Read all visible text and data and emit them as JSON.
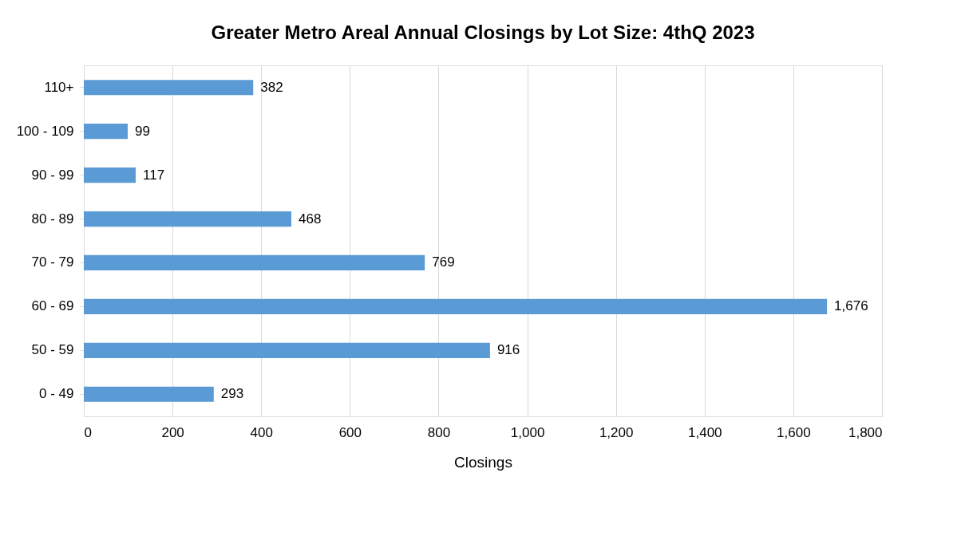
{
  "chart_data": {
    "type": "bar",
    "orientation": "horizontal",
    "title": "Greater Metro Areal Annual Closings by Lot Size: 4thQ 2023",
    "xlabel": "Closings",
    "categories": [
      "110+",
      "100 - 109",
      "90 - 99",
      "80 - 89",
      "70 - 79",
      "60 - 69",
      "50 - 59",
      "0 - 49"
    ],
    "values": [
      382,
      99,
      117,
      468,
      769,
      1676,
      916,
      293
    ],
    "color": "#5b9bd5",
    "xlim": [
      0,
      1800
    ],
    "xticks": [
      0,
      200,
      400,
      600,
      800,
      {
        "value": 1000,
        "label": "1,000"
      },
      {
        "value": 1200,
        "label": "1,200"
      },
      {
        "value": 1400,
        "label": "1,400"
      },
      {
        "value": 1600,
        "label": "1,600"
      },
      {
        "value": 1800,
        "label": "1,800"
      }
    ],
    "value_labels": [
      "382",
      "99",
      "117",
      "468",
      "769",
      "1,676",
      "916",
      "293"
    ],
    "grid": "x"
  }
}
